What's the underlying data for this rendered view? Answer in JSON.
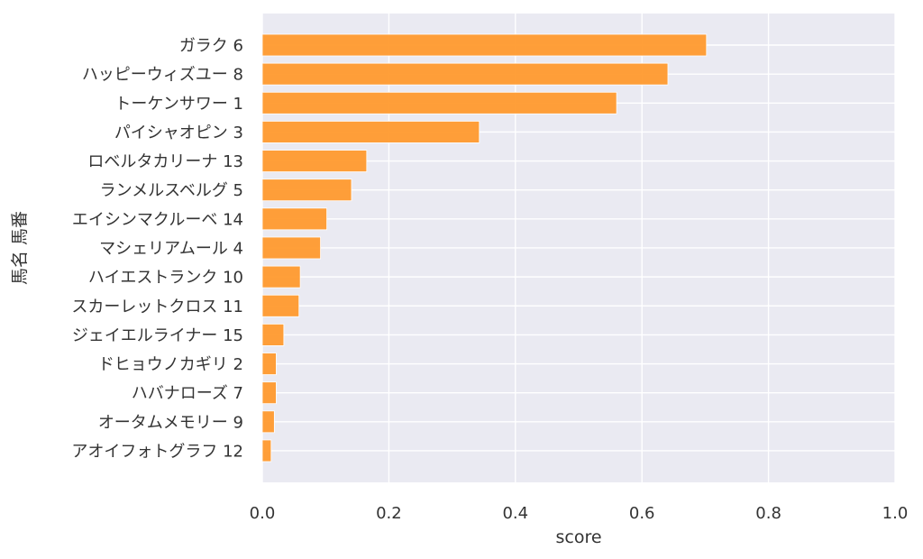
{
  "chart_data": {
    "type": "bar",
    "orientation": "horizontal",
    "xlabel": "score",
    "ylabel": "馬名 馬番",
    "xlim": [
      0,
      1.0
    ],
    "xticks": [
      "0.0",
      "0.2",
      "0.4",
      "0.6",
      "0.8",
      "1.0"
    ],
    "grid": true,
    "bar_color": "#ff9a2e",
    "background_color": "#eaeaf2",
    "categories": [
      "ガラク 6",
      "ハッピーウィズユー 8",
      "トーケンサワー 1",
      "パイシャオピン 3",
      "ロベルタカリーナ 13",
      "ランメルスベルグ 5",
      "エイシンマクルーベ 14",
      "マシェリアムール 4",
      "ハイエストランク 10",
      "スカーレットクロス 11",
      "ジェイエルライナー 15",
      "ドヒョウノカギリ 2",
      "ハバナローズ 7",
      "オータムメモリー 9",
      "アオイフォトグラフ 12"
    ],
    "values": [
      0.702,
      0.641,
      0.56,
      0.343,
      0.165,
      0.141,
      0.102,
      0.092,
      0.06,
      0.058,
      0.034,
      0.022,
      0.022,
      0.019,
      0.014
    ]
  }
}
